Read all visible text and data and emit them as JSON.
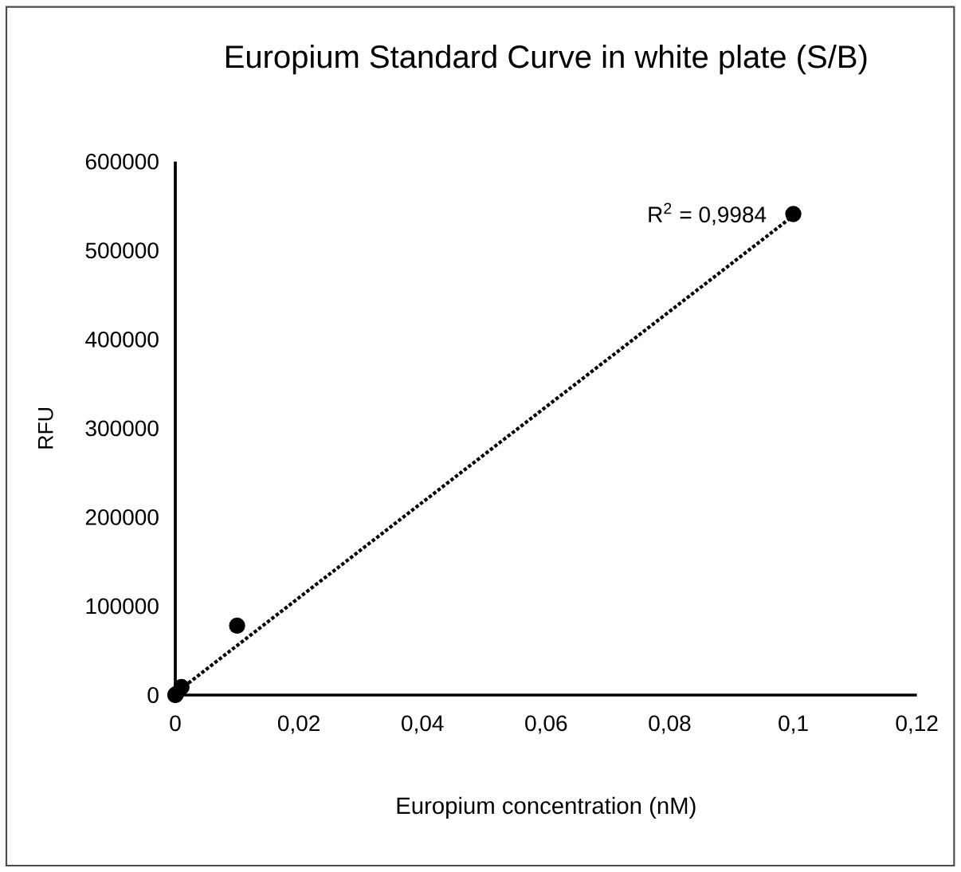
{
  "chart_data": {
    "type": "scatter",
    "title": "Europium Standard Curve in white plate (S/B)",
    "xlabel": "Europium concentration (nM)",
    "ylabel": "RFU",
    "marker": "circle",
    "series": [
      {
        "color": "#000000",
        "x": [
          0,
          0.0001,
          0.001,
          0.01,
          0.1
        ],
        "values": [
          0,
          1000,
          9000,
          78000,
          541000
        ]
      },
      {
        "type": "line",
        "color": "#000000",
        "line_style": "dotted",
        "marker": "none",
        "x": [
          0,
          0.1
        ],
        "values": [
          2000,
          539000
        ]
      }
    ],
    "xlim": [
      0,
      0.12
    ],
    "ylim": [
      0,
      600000
    ],
    "xticks": [
      0,
      {
        "value": 0.02,
        "label": "0,02"
      },
      {
        "value": 0.04,
        "label": "0,04"
      },
      {
        "value": 0.06,
        "label": "0,06"
      },
      {
        "value": 0.08,
        "label": "0,08"
      },
      {
        "value": 0.1,
        "label": "0,1"
      },
      {
        "value": 0.12,
        "label": "0,12"
      }
    ],
    "yticks": [
      0,
      100000,
      200000,
      300000,
      400000,
      500000,
      600000
    ],
    "annotations": [
      {
        "text": "R$^{2}$ = 0,9984",
        "x": 0.1,
        "y": 541000
      }
    ]
  }
}
